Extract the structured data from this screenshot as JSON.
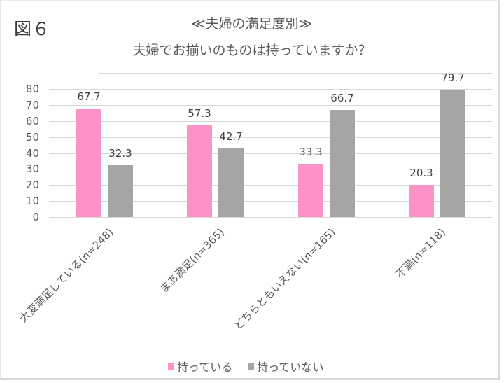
{
  "figure": {
    "label": "図６",
    "title_line1": "≪夫婦の満足度別≫",
    "title_line2": "夫婦でお揃いのものは持っていますか？"
  },
  "colors": {
    "series1": "#FB93C8",
    "series2": "#A5A5A5",
    "grid": "#D9D9D9"
  },
  "legend": {
    "items": [
      {
        "label": "持っている",
        "color": "#FB93C8"
      },
      {
        "label": "持っていない",
        "color": "#A5A5A5"
      }
    ],
    "position": "bottom"
  },
  "y_axis": {
    "ticks": [
      "80",
      "70",
      "60",
      "50",
      "40",
      "30",
      "20",
      "10",
      "0"
    ]
  },
  "categories": [
    "大変満足している(n=248)",
    "まあ満足(n=365)",
    "どちらともいえない(n=165)",
    "不満(n=118)"
  ],
  "value_labels": {
    "s1": [
      "67.7",
      "57.3",
      "33.3",
      "20.3"
    ],
    "s2": [
      "32.3",
      "42.7",
      "66.7",
      "79.7"
    ]
  },
  "chart_data": {
    "type": "bar",
    "title": "≪夫婦の満足度別≫ 夫婦でお揃いのものは持っていますか？",
    "categories": [
      "大変満足している(n=248)",
      "まあ満足(n=365)",
      "どちらともいえない(n=165)",
      "不満(n=118)"
    ],
    "series": [
      {
        "name": "持っている",
        "values": [
          67.7,
          57.3,
          33.3,
          20.3
        ],
        "color": "#FB93C8"
      },
      {
        "name": "持っていない",
        "values": [
          32.3,
          42.7,
          66.7,
          79.7
        ],
        "color": "#A5A5A5"
      }
    ],
    "xlabel": "",
    "ylabel": "",
    "ylim": [
      0,
      80
    ],
    "yticks": [
      0,
      10,
      20,
      30,
      40,
      50,
      60,
      70,
      80
    ],
    "grid": true,
    "legend_position": "bottom",
    "data_labels": true
  }
}
